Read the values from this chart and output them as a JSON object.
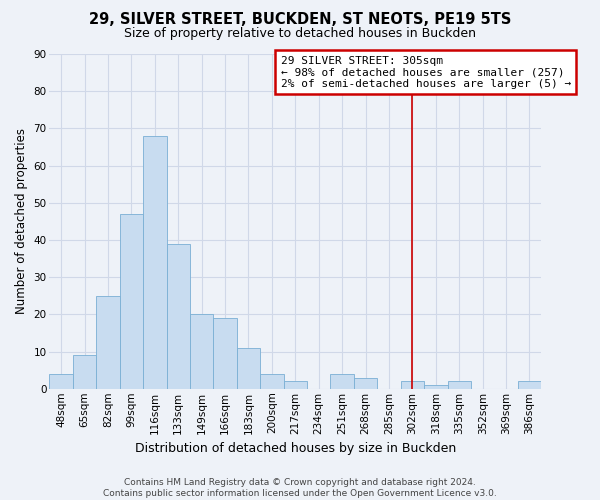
{
  "title": "29, SILVER STREET, BUCKDEN, ST NEOTS, PE19 5TS",
  "subtitle": "Size of property relative to detached houses in Buckden",
  "xlabel": "Distribution of detached houses by size in Buckden",
  "ylabel": "Number of detached properties",
  "bar_labels": [
    "48sqm",
    "65sqm",
    "82sqm",
    "99sqm",
    "116sqm",
    "133sqm",
    "149sqm",
    "166sqm",
    "183sqm",
    "200sqm",
    "217sqm",
    "234sqm",
    "251sqm",
    "268sqm",
    "285sqm",
    "302sqm",
    "318sqm",
    "335sqm",
    "352sqm",
    "369sqm",
    "386sqm"
  ],
  "bar_values": [
    4,
    9,
    25,
    47,
    68,
    39,
    20,
    19,
    11,
    4,
    2,
    0,
    4,
    3,
    0,
    2,
    1,
    2,
    0,
    0,
    2
  ],
  "bar_color": "#c8dcf0",
  "bar_edge_color": "#7aafd4",
  "vline_x_index": 15,
  "vline_color": "#cc0000",
  "annotation_title": "29 SILVER STREET: 305sqm",
  "annotation_line1": "← 98% of detached houses are smaller (257)",
  "annotation_line2": "2% of semi-detached houses are larger (5) →",
  "annotation_box_edgecolor": "#cc0000",
  "annotation_bg_color": "#ffffff",
  "ylim": [
    0,
    90
  ],
  "yticks": [
    0,
    10,
    20,
    30,
    40,
    50,
    60,
    70,
    80,
    90
  ],
  "grid_color": "#d0d8e8",
  "background_color": "#eef2f8",
  "footer_line1": "Contains HM Land Registry data © Crown copyright and database right 2024.",
  "footer_line2": "Contains public sector information licensed under the Open Government Licence v3.0.",
  "title_fontsize": 10.5,
  "subtitle_fontsize": 9,
  "ylabel_fontsize": 8.5,
  "xlabel_fontsize": 9,
  "tick_fontsize": 7.5,
  "annotation_fontsize": 8,
  "footer_fontsize": 6.5
}
